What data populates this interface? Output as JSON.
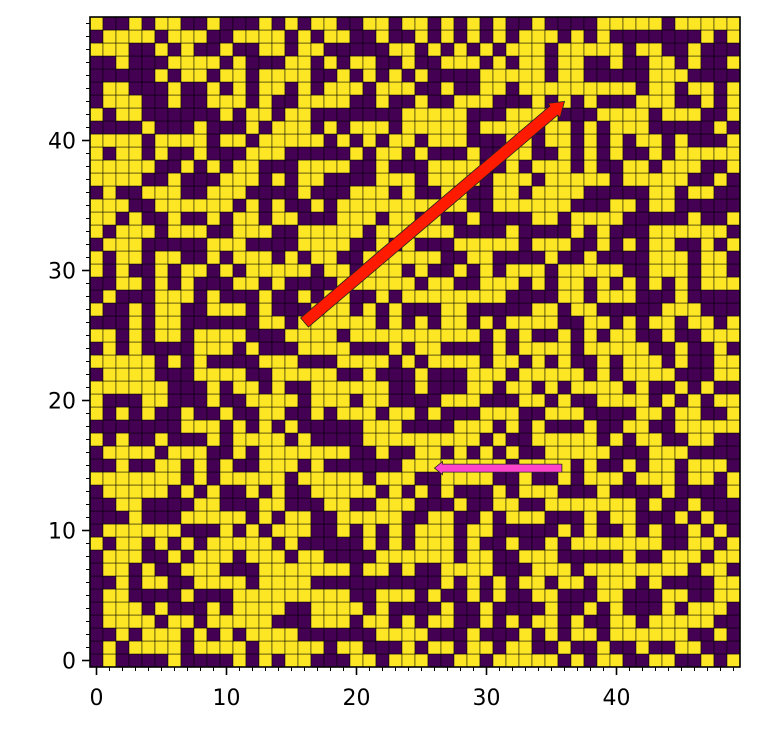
{
  "chart_data": {
    "type": "heatmap",
    "grid": {
      "rows": 50,
      "cols": 50,
      "pattern": "random binary maze (open / wall cells)"
    },
    "colors": {
      "open_cell": "#fde725",
      "wall_cell": "#440154",
      "grid_line": "#000000",
      "arrow_long": "#ff1a00",
      "arrow_short": "#ff44cc"
    },
    "x_axis": {
      "range": [
        -0.5,
        49.5
      ],
      "ticks": [
        0,
        10,
        20,
        30,
        40
      ],
      "tick_labels": [
        "0",
        "10",
        "20",
        "30",
        "40"
      ]
    },
    "y_axis": {
      "range": [
        -0.5,
        49.5
      ],
      "ticks": [
        0,
        10,
        20,
        30,
        40
      ],
      "tick_labels": [
        "0",
        "10",
        "20",
        "30",
        "40"
      ]
    },
    "minor_ticks": {
      "step": 1
    },
    "arrows": [
      {
        "name": "red-arrow",
        "from": [
          16,
          26
        ],
        "to": [
          36,
          43
        ],
        "color": "#ff1a00"
      },
      {
        "name": "pink-arrow",
        "from": [
          35.8,
          14.8
        ],
        "to": [
          26,
          14.8
        ],
        "color": "#ff44cc"
      }
    ]
  }
}
